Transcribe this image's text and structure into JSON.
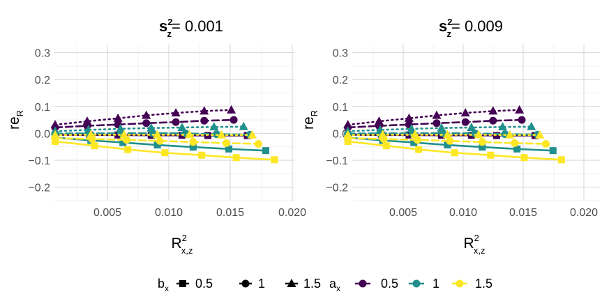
{
  "chart_data": {
    "type": "line",
    "legend_position": "bottom",
    "legend": {
      "b_title_main": "b",
      "b_title_sub": "x",
      "b_levels": [
        "0.5",
        "1",
        "1.5"
      ],
      "a_title_main": "a",
      "a_title_sub": "x",
      "a_levels": [
        "0.5",
        "1",
        "1.5"
      ]
    },
    "colors": {
      "0.5": "#440154",
      "1": "#21908C",
      "1.5": "#FDE725"
    },
    "xlim": [
      0.0,
      0.0202
    ],
    "ylim": [
      -0.25,
      0.33
    ],
    "panels": [
      {
        "title_main": "s",
        "title_sup": "2",
        "title_sub": "z",
        "title_value": "= 0.001",
        "xlabel_main": "R",
        "xlabel_sup": "2",
        "xlabel_sub": "x,z",
        "ylabel_main": "re",
        "ylabel_sub": "R",
        "x_ticks": [
          "0.005",
          "0.010",
          "0.015",
          "0.020"
        ],
        "y_ticks": [
          "-0.2",
          "-0.1",
          "0.0",
          "0.1",
          "0.2",
          "0.3"
        ],
        "series": [
          {
            "a": "0.5",
            "b": "0.5",
            "x": [
              0.0019,
              0.0047,
              0.007,
              0.0097,
              0.0122,
              0.0143,
              0.0175
            ],
            "y": [
              -0.005,
              -0.006,
              -0.006,
              -0.007,
              -0.007,
              -0.008,
              -0.008
            ]
          },
          {
            "a": "0.5",
            "b": "1",
            "x": [
              0.0019,
              0.0045,
              0.007,
              0.0093,
              0.0117,
              0.014,
              0.0164
            ],
            "y": [
              0.022,
              0.028,
              0.033,
              0.038,
              0.042,
              0.047,
              0.05
            ]
          },
          {
            "a": "0.5",
            "b": "1.5",
            "x": [
              0.0019,
              0.0045,
              0.007,
              0.0093,
              0.0117,
              0.014,
              0.0162
            ],
            "y": [
              0.032,
              0.045,
              0.056,
              0.067,
              0.076,
              0.083,
              0.087
            ]
          },
          {
            "a": "1",
            "b": "0.5",
            "x": [
              0.0019,
              0.0048,
              0.0074,
              0.0102,
              0.0131,
              0.016,
              0.019
            ],
            "y": [
              -0.016,
              -0.026,
              -0.034,
              -0.043,
              -0.051,
              -0.058,
              -0.064
            ]
          },
          {
            "a": "1",
            "b": "1",
            "x": [
              0.0019,
              0.0046,
              0.0073,
              0.0098,
              0.0125,
              0.015,
              0.0177
            ],
            "y": [
              -0.001,
              0.0,
              0.0,
              0.001,
              0.0,
              -0.003,
              -0.005
            ]
          },
          {
            "a": "1",
            "b": "1.5",
            "x": [
              0.0019,
              0.0046,
              0.0072,
              0.0097,
              0.0122,
              0.0148,
              0.0172
            ],
            "y": [
              0.008,
              0.013,
              0.017,
              0.02,
              0.022,
              0.024,
              0.025
            ]
          },
          {
            "a": "1.5",
            "b": "0.5",
            "x": [
              0.0019,
              0.0051,
              0.0078,
              0.0108,
              0.0138,
              0.0166,
              0.0197
            ],
            "y": [
              -0.03,
              -0.046,
              -0.06,
              -0.072,
              -0.081,
              -0.09,
              -0.098
            ]
          },
          {
            "a": "1.5",
            "b": "1",
            "x": [
              0.0019,
              0.0049,
              0.0077,
              0.0104,
              0.0131,
              0.0158,
              0.0184
            ],
            "y": [
              -0.018,
              -0.021,
              -0.024,
              -0.028,
              -0.032,
              -0.036,
              -0.039
            ]
          },
          {
            "a": "1.5",
            "b": "1.5",
            "x": [
              0.0019,
              0.0048,
              0.0075,
              0.0102,
              0.0128,
              0.0154,
              0.0179
            ],
            "y": [
              -0.006,
              -0.005,
              -0.005,
              -0.005,
              -0.005,
              -0.006,
              -0.006
            ]
          }
        ]
      },
      {
        "title_main": "s",
        "title_sup": "2",
        "title_sub": "z",
        "title_value": "= 0.009",
        "xlabel_main": "R",
        "xlabel_sup": "2",
        "xlabel_sub": "x,z",
        "ylabel_main": "re",
        "ylabel_sub": "R",
        "x_ticks": [
          "0.005",
          "0.010",
          "0.015",
          "0.020"
        ],
        "y_ticks": [
          "-0.2",
          "-0.1",
          "0.0",
          "0.1",
          "0.2",
          "0.3"
        ],
        "series": [
          {
            "a": "0.5",
            "b": "0.5",
            "x": [
              0.0019,
              0.0047,
              0.007,
              0.0097,
              0.0122,
              0.0143,
              0.0175
            ],
            "y": [
              -0.005,
              -0.006,
              -0.006,
              -0.007,
              -0.007,
              -0.008,
              -0.008
            ]
          },
          {
            "a": "0.5",
            "b": "1",
            "x": [
              0.0019,
              0.0045,
              0.007,
              0.0093,
              0.0117,
              0.014,
              0.0164
            ],
            "y": [
              0.022,
              0.028,
              0.033,
              0.038,
              0.042,
              0.047,
              0.05
            ]
          },
          {
            "a": "0.5",
            "b": "1.5",
            "x": [
              0.0019,
              0.0045,
              0.007,
              0.0093,
              0.0117,
              0.014,
              0.0162
            ],
            "y": [
              0.032,
              0.045,
              0.056,
              0.067,
              0.076,
              0.083,
              0.087
            ]
          },
          {
            "a": "1",
            "b": "0.5",
            "x": [
              0.0019,
              0.0048,
              0.0074,
              0.0102,
              0.0131,
              0.016,
              0.019
            ],
            "y": [
              -0.016,
              -0.026,
              -0.034,
              -0.043,
              -0.051,
              -0.058,
              -0.064
            ]
          },
          {
            "a": "1",
            "b": "1",
            "x": [
              0.0019,
              0.0046,
              0.0073,
              0.0098,
              0.0125,
              0.015,
              0.0177
            ],
            "y": [
              -0.001,
              0.0,
              0.0,
              0.001,
              0.0,
              -0.003,
              -0.005
            ]
          },
          {
            "a": "1",
            "b": "1.5",
            "x": [
              0.0019,
              0.0046,
              0.0072,
              0.0097,
              0.0122,
              0.0148,
              0.0172
            ],
            "y": [
              0.008,
              0.013,
              0.017,
              0.02,
              0.022,
              0.024,
              0.025
            ]
          },
          {
            "a": "1.5",
            "b": "0.5",
            "x": [
              0.0019,
              0.0051,
              0.0078,
              0.0108,
              0.0138,
              0.0166,
              0.0197
            ],
            "y": [
              -0.03,
              -0.046,
              -0.06,
              -0.072,
              -0.081,
              -0.09,
              -0.098
            ]
          },
          {
            "a": "1.5",
            "b": "1",
            "x": [
              0.0019,
              0.0049,
              0.0077,
              0.0104,
              0.0131,
              0.0158,
              0.0184
            ],
            "y": [
              -0.018,
              -0.021,
              -0.024,
              -0.028,
              -0.032,
              -0.036,
              -0.039
            ]
          },
          {
            "a": "1.5",
            "b": "1.5",
            "x": [
              0.0019,
              0.0048,
              0.0075,
              0.0102,
              0.0128,
              0.0154,
              0.0179
            ],
            "y": [
              -0.006,
              -0.005,
              -0.005,
              -0.005,
              -0.005,
              -0.006,
              -0.006
            ]
          }
        ]
      }
    ]
  }
}
